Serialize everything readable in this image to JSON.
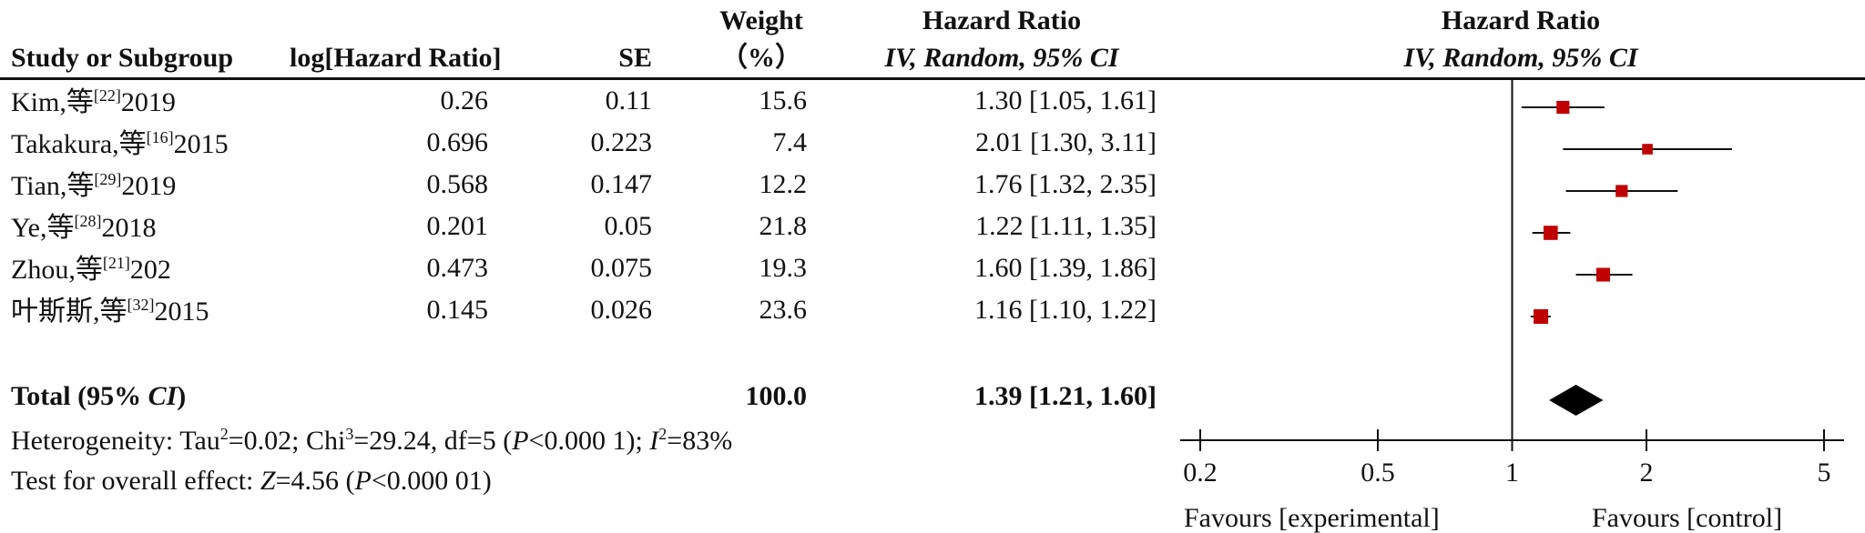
{
  "columns": {
    "study": "Study or Subgroup",
    "log_hr": "log[Hazard Ratio]",
    "se": "SE",
    "weight_line1": "Weight",
    "weight_line2": "（%）",
    "hr_line1": "Hazard Ratio",
    "hr_line2": "IV, Random, 95% CI",
    "plot_line1": "Hazard Ratio",
    "plot_line2": "IV, Random, 95% CI"
  },
  "studies": [
    {
      "name": "Kim,等",
      "ref": "[22]",
      "year": "2019",
      "log_hr": "0.26",
      "se": "0.11",
      "weight": "15.6",
      "ci_text": "1.30 [1.05, 1.61]"
    },
    {
      "name": "Takakura,等",
      "ref": "[16]",
      "year": "2015",
      "log_hr": "0.696",
      "se": "0.223",
      "weight": "7.4",
      "ci_text": "2.01 [1.30, 3.11]"
    },
    {
      "name": "Tian,等",
      "ref": "[29]",
      "year": "2019",
      "log_hr": "0.568",
      "se": "0.147",
      "weight": "12.2",
      "ci_text": "1.76 [1.32, 2.35]"
    },
    {
      "name": "Ye,等",
      "ref": "[28]",
      "year": "2018",
      "log_hr": "0.201",
      "se": "0.05",
      "weight": "21.8",
      "ci_text": "1.22 [1.11, 1.35]"
    },
    {
      "name": "Zhou,等",
      "ref": "[21]",
      "year": "202",
      "log_hr": "0.473",
      "se": "0.075",
      "weight": "19.3",
      "ci_text": "1.60 [1.39, 1.86]"
    },
    {
      "name": "叶斯斯,等",
      "ref": "[32]",
      "year": "2015",
      "log_hr": "0.145",
      "se": "0.026",
      "weight": "23.6",
      "ci_text": "1.16 [1.10, 1.22]"
    }
  ],
  "total": {
    "label_prefix": "Total (95% ",
    "label_ci": "CI",
    "label_suffix": ")",
    "weight": "100.0",
    "ci_text": "1.39 [1.21, 1.60]"
  },
  "heterogeneity": {
    "p1": "Heterogeneity: Tau",
    "sup1": "2",
    "p2": "=0.02; Chi",
    "sup2": "3",
    "p3": "=29.24, df=5 (",
    "p_italic": "P",
    "p4": "<0.000 1); ",
    "i_italic": "I",
    "sup3": "2",
    "p5": "=83%"
  },
  "overall_effect": {
    "p1": "Test for overall effect: ",
    "z_italic": "Z",
    "p2": "=4.56 (",
    "p_italic": "P",
    "p3": "<0.000 01)"
  },
  "axis": {
    "ticks": [
      "0.2",
      "0.5",
      "1",
      "2",
      "5"
    ],
    "favours_left": "Favours [experimental]",
    "favours_right": "Favours [control]"
  },
  "chart_data": {
    "type": "scatter",
    "title": "Hazard Ratio IV, Random, 95% CI",
    "x_scale": "log",
    "xlim": [
      0.2,
      5
    ],
    "x_ticks": [
      0.2,
      0.5,
      1,
      2,
      5
    ],
    "reference_line": 1,
    "studies": [
      {
        "name": "Kim,等[22]2019",
        "hr": 1.3,
        "lower": 1.05,
        "upper": 1.61,
        "weight": 15.6
      },
      {
        "name": "Takakura,等[16]2015",
        "hr": 2.01,
        "lower": 1.3,
        "upper": 3.11,
        "weight": 7.4
      },
      {
        "name": "Tian,等[29]2019",
        "hr": 1.76,
        "lower": 1.32,
        "upper": 2.35,
        "weight": 12.2
      },
      {
        "name": "Ye,等[28]2018",
        "hr": 1.22,
        "lower": 1.11,
        "upper": 1.35,
        "weight": 21.8
      },
      {
        "name": "Zhou,等[21]202",
        "hr": 1.6,
        "lower": 1.39,
        "upper": 1.86,
        "weight": 19.3
      },
      {
        "name": "叶斯斯,等[32]2015",
        "hr": 1.16,
        "lower": 1.1,
        "upper": 1.22,
        "weight": 23.6
      }
    ],
    "total": {
      "hr": 1.39,
      "lower": 1.21,
      "upper": 1.6
    },
    "colors": {
      "marker": "#c00000",
      "line": "#111111",
      "diamond": "#000000"
    }
  }
}
